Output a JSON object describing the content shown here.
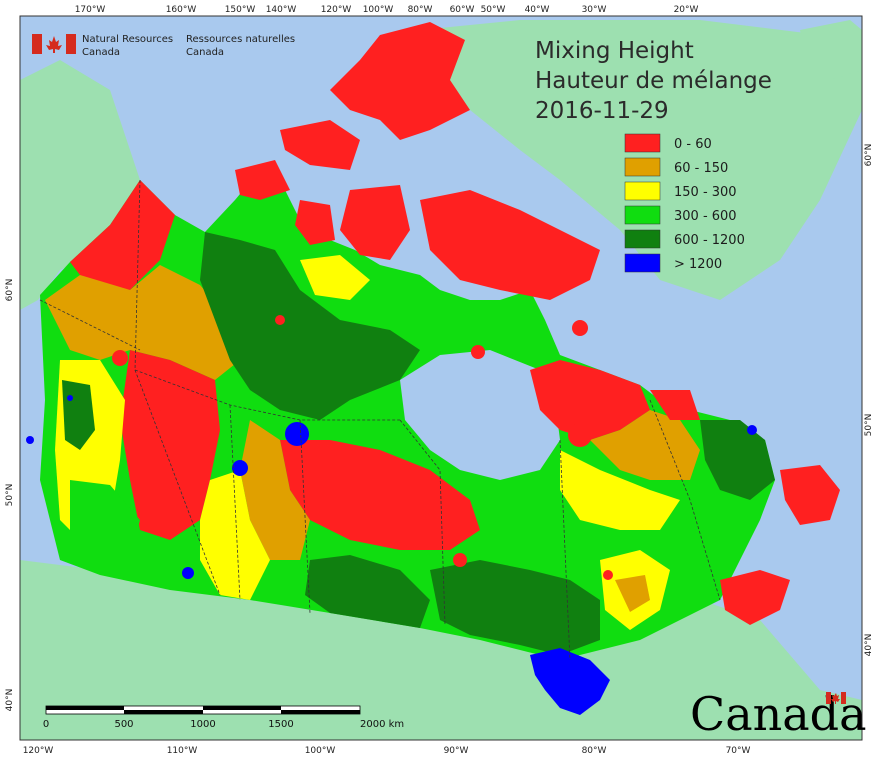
{
  "map": {
    "title_en": "Mixing Height",
    "title_fr": "Hauteur de mélange",
    "date": "2016-11-29",
    "legend": [
      {
        "label": "0 - 60",
        "color": "#ff2020"
      },
      {
        "label": "60 - 150",
        "color": "#e0a000"
      },
      {
        "label": "150 - 300",
        "color": "#ffff00"
      },
      {
        "label": "300 - 600",
        "color": "#10dd10"
      },
      {
        "label": "600 - 1200",
        "color": "#108010"
      },
      {
        "label": "> 1200",
        "color": "#0000ff"
      }
    ],
    "org": {
      "en_line1": "Natural Resources",
      "en_line2": "Canada",
      "fr_line1": "Ressources naturelles",
      "fr_line2": "Canada"
    },
    "wordmark": "Canada",
    "top_ticks": [
      "170°W",
      "160°W",
      "150°W",
      "140°W",
      "120°W",
      "100°W",
      "80°W",
      "60°W",
      "50°W",
      "40°W",
      "30°W",
      "20°W"
    ],
    "bottom_ticks": [
      "120°W",
      "110°W",
      "100°W",
      "90°W",
      "80°W",
      "70°W"
    ],
    "left_ticks": [
      "60°N",
      "50°N",
      "40°N"
    ],
    "right_ticks": [
      "60°N",
      "50°N",
      "40°N"
    ],
    "scale_labels": [
      "0",
      "500",
      "1000",
      "1500",
      "2000 km"
    ],
    "colors": {
      "ocean": "#a9c9ee",
      "land": "#9de0b0",
      "border": "#333333"
    }
  }
}
